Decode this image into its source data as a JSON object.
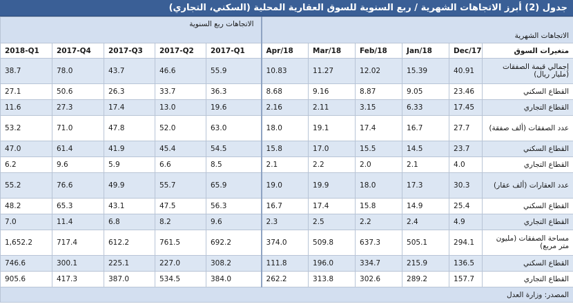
{
  "title": "جدول (2) أبرز الاتجاهات الشهرية / ربع السنوية للسوق العقارية المحلية (السكني، التجاري)",
  "headers": {
    "quarterly_group": "الاتجاهات ربع السنوية",
    "monthly_group": "الاتجاهات الشهرية",
    "variables_label": "متغيرات السوق"
  },
  "columns": [
    "2018-Q1",
    "2017-Q4",
    "2017-Q3",
    "2017-Q2",
    "2017-Q1",
    "Apr/18",
    "Mar/18",
    "Feb/18",
    "Jan/18",
    "Dec/17"
  ],
  "rows": [
    {
      "label": "إجمالي قيمة الصفقات (مليار ريال)",
      "values": [
        "38.7",
        "78.0",
        "43.7",
        "46.6",
        "55.9",
        "10.83",
        "11.27",
        "12.02",
        "15.39",
        "40.91"
      ]
    },
    {
      "label": "القطاع السكني",
      "values": [
        "27.1",
        "50.6",
        "26.3",
        "33.7",
        "36.3",
        "8.68",
        "9.16",
        "8.87",
        "9.05",
        "23.46"
      ]
    },
    {
      "label": "القطاع التجاري",
      "values": [
        "11.6",
        "27.3",
        "17.4",
        "13.0",
        "19.6",
        "2.16",
        "2.11",
        "3.15",
        "6.33",
        "17.45"
      ]
    },
    {
      "label": "عدد الصفقات (ألف صفقة)",
      "values": [
        "53.2",
        "71.0",
        "47.8",
        "52.0",
        "63.0",
        "18.0",
        "19.1",
        "17.4",
        "16.7",
        "27.7"
      ]
    },
    {
      "label": "القطاع السكني",
      "values": [
        "47.0",
        "61.4",
        "41.9",
        "45.4",
        "54.5",
        "15.8",
        "17.0",
        "15.5",
        "14.5",
        "23.7"
      ]
    },
    {
      "label": "القطاع التجاري",
      "values": [
        "6.2",
        "9.6",
        "5.9",
        "6.6",
        "8.5",
        "2.1",
        "2.2",
        "2.0",
        "2.1",
        "4.0"
      ]
    },
    {
      "label": "عدد العقارات (ألف عقار)",
      "values": [
        "55.2",
        "76.6",
        "49.9",
        "55.7",
        "65.9",
        "19.0",
        "19.9",
        "18.0",
        "17.3",
        "30.3"
      ]
    },
    {
      "label": "القطاع السكني",
      "values": [
        "48.2",
        "65.3",
        "43.1",
        "47.5",
        "56.3",
        "16.7",
        "17.4",
        "15.8",
        "14.9",
        "25.4"
      ]
    },
    {
      "label": "القطاع التجاري",
      "values": [
        "7.0",
        "11.4",
        "6.8",
        "8.2",
        "9.6",
        "2.3",
        "2.5",
        "2.2",
        "2.4",
        "4.9"
      ]
    },
    {
      "label": "مساحة الصفقات (مليون متر مربع)",
      "values": [
        "1,652.2",
        "717.4",
        "612.2",
        "761.5",
        "692.2",
        "374.0",
        "509.8",
        "637.3",
        "505.1",
        "294.1"
      ]
    },
    {
      "label": "القطاع السكني",
      "values": [
        "746.6",
        "300.1",
        "225.1",
        "227.0",
        "308.2",
        "111.8",
        "196.0",
        "334.7",
        "215.9",
        "136.5"
      ]
    },
    {
      "label": "القطاع التجاري",
      "values": [
        "905.6",
        "417.3",
        "387.0",
        "534.5",
        "384.0",
        "262.2",
        "313.8",
        "302.6",
        "289.2",
        "157.7"
      ]
    }
  ],
  "source": "المصدر: وزارة العدل",
  "colors": {
    "title_bg": "#3a5f96",
    "header_bg": "#d3dff0",
    "shaded_row": "#dce6f3",
    "border": "#b8c4d6"
  }
}
